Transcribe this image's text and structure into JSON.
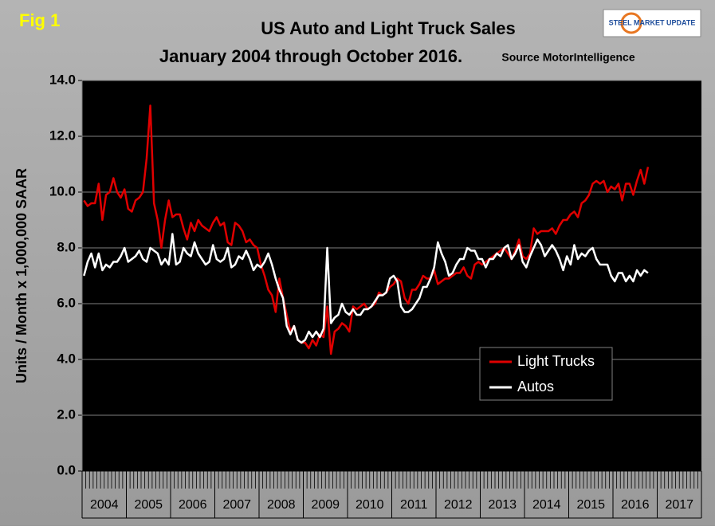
{
  "fig_label": "Fig 1",
  "logo": "STEEL MARKET UPDATE",
  "chart_data": {
    "type": "line",
    "title": "US Auto and Light Truck Sales",
    "subtitle": "January 2004 through October 2016.",
    "source": "Source MotorIntelligence",
    "y_label": "Units / Month x 1,000,000 SAAR",
    "ylim": [
      0,
      14
    ],
    "yticks": [
      {
        "value": 0,
        "label": "0.0"
      },
      {
        "value": 2,
        "label": "2.0"
      },
      {
        "value": 4,
        "label": "4.0"
      },
      {
        "value": 6,
        "label": "6.0"
      },
      {
        "value": 8,
        "label": "8.0"
      },
      {
        "value": 10,
        "label": "10.0"
      },
      {
        "value": 12,
        "label": "12.0"
      },
      {
        "value": 14,
        "label": "14.0"
      }
    ],
    "grid": true,
    "legend": "lower-right",
    "categories": [
      "2004",
      null,
      null,
      null,
      null,
      null,
      null,
      null,
      null,
      null,
      null,
      null,
      "2005",
      null,
      null,
      null,
      null,
      null,
      null,
      null,
      null,
      null,
      null,
      null,
      "2006",
      null,
      null,
      null,
      null,
      null,
      null,
      null,
      null,
      null,
      null,
      null,
      "2007",
      null,
      null,
      null,
      null,
      null,
      null,
      null,
      null,
      null,
      null,
      null,
      "2008",
      null,
      null,
      null,
      null,
      null,
      null,
      null,
      null,
      null,
      null,
      null,
      "2009",
      null,
      null,
      null,
      null,
      null,
      null,
      null,
      null,
      null,
      null,
      null,
      "2010",
      null,
      null,
      null,
      null,
      null,
      null,
      null,
      null,
      null,
      null,
      null,
      "2011",
      null,
      null,
      null,
      null,
      null,
      null,
      null,
      null,
      null,
      null,
      null,
      "2012",
      null,
      null,
      null,
      null,
      null,
      null,
      null,
      null,
      null,
      null,
      null,
      "2013",
      null,
      null,
      null,
      null,
      null,
      null,
      null,
      null,
      null,
      null,
      null,
      "2014",
      null,
      null,
      null,
      null,
      null,
      null,
      null,
      null,
      null,
      null,
      null,
      "2015",
      null,
      null,
      null,
      null,
      null,
      null,
      null,
      null,
      null,
      null,
      null,
      "2016",
      null,
      null,
      null,
      null,
      null,
      null,
      null,
      null,
      null,
      null,
      null,
      "2017",
      null,
      null,
      null,
      null,
      null,
      null,
      null,
      null,
      null,
      null,
      null
    ],
    "series": [
      {
        "name": "Light Trucks",
        "color": "#e00000",
        "values": [
          9.7,
          9.5,
          9.6,
          9.6,
          10.3,
          9.0,
          9.9,
          10.0,
          10.5,
          10.0,
          9.8,
          10.1,
          9.4,
          9.3,
          9.7,
          9.8,
          10.0,
          11.2,
          13.1,
          9.6,
          9.0,
          8.0,
          9.0,
          9.7,
          9.1,
          9.2,
          9.2,
          8.7,
          8.3,
          8.9,
          8.6,
          9.0,
          8.8,
          8.7,
          8.6,
          8.9,
          9.1,
          8.8,
          8.9,
          8.2,
          8.1,
          8.9,
          8.8,
          8.6,
          8.2,
          8.3,
          8.1,
          8.0,
          7.4,
          7.0,
          6.5,
          6.3,
          5.7,
          6.9,
          6.2,
          5.6,
          5.0,
          5.2,
          4.7,
          4.6,
          4.6,
          4.4,
          4.7,
          4.5,
          4.9,
          4.8,
          5.9,
          4.2,
          5.0,
          5.1,
          5.3,
          5.2,
          5.0,
          5.9,
          5.8,
          5.9,
          6.0,
          5.8,
          5.9,
          6.0,
          6.4,
          6.3,
          6.4,
          6.6,
          6.7,
          6.9,
          6.8,
          6.2,
          6.0,
          6.5,
          6.5,
          6.7,
          7.0,
          6.9,
          6.9,
          7.2,
          6.7,
          6.8,
          6.9,
          6.9,
          7.0,
          7.1,
          7.1,
          7.3,
          7.0,
          6.9,
          7.4,
          7.5,
          7.4,
          7.5,
          7.6,
          7.7,
          7.8,
          7.9,
          8.0,
          7.8,
          7.6,
          7.9,
          8.3,
          7.7,
          7.6,
          7.8,
          8.7,
          8.5,
          8.6,
          8.6,
          8.6,
          8.7,
          8.5,
          8.8,
          9.0,
          9.0,
          9.2,
          9.3,
          9.1,
          9.6,
          9.7,
          9.9,
          10.3,
          10.4,
          10.3,
          10.4,
          10.0,
          10.2,
          10.1,
          10.3,
          9.7,
          10.3,
          10.3,
          9.9,
          10.4,
          10.8,
          10.3,
          10.9,
          null,
          null,
          null,
          null,
          null,
          null,
          null,
          null,
          null,
          null,
          null,
          null,
          null,
          null
        ]
      },
      {
        "name": "Autos",
        "color": "#ffffff",
        "values": [
          7.0,
          7.5,
          7.8,
          7.3,
          7.8,
          7.2,
          7.4,
          7.3,
          7.5,
          7.5,
          7.7,
          8.0,
          7.5,
          7.6,
          7.7,
          7.9,
          7.6,
          7.5,
          8.0,
          7.9,
          7.8,
          7.4,
          7.6,
          7.4,
          8.5,
          7.4,
          7.5,
          8.0,
          7.8,
          7.7,
          8.2,
          7.8,
          7.6,
          7.4,
          7.5,
          8.1,
          7.6,
          7.5,
          7.6,
          8.0,
          7.3,
          7.4,
          7.7,
          7.6,
          7.9,
          7.6,
          7.2,
          7.4,
          7.3,
          7.5,
          7.8,
          7.4,
          6.9,
          6.5,
          6.2,
          5.2,
          4.9,
          5.2,
          4.7,
          4.6,
          4.7,
          5.0,
          4.8,
          5.0,
          4.8,
          5.1,
          8.0,
          5.3,
          5.5,
          5.6,
          6.0,
          5.7,
          5.6,
          5.8,
          5.6,
          5.6,
          5.8,
          5.8,
          5.9,
          6.1,
          6.3,
          6.3,
          6.4,
          6.9,
          7.0,
          6.8,
          5.9,
          5.7,
          5.7,
          5.8,
          6.0,
          6.2,
          6.6,
          6.6,
          6.9,
          7.3,
          8.2,
          7.8,
          7.5,
          7.0,
          7.1,
          7.4,
          7.6,
          7.6,
          8.0,
          7.9,
          7.9,
          7.6,
          7.6,
          7.3,
          7.6,
          7.6,
          7.8,
          7.7,
          8.0,
          8.1,
          7.6,
          7.8,
          8.1,
          7.5,
          7.3,
          7.7,
          8.0,
          8.3,
          8.1,
          7.7,
          7.9,
          8.1,
          7.9,
          7.6,
          7.2,
          7.7,
          7.4,
          8.1,
          7.6,
          7.8,
          7.7,
          7.9,
          8.0,
          7.6,
          7.4,
          7.4,
          7.4,
          7.0,
          6.8,
          7.1,
          7.1,
          6.8,
          7.0,
          6.8,
          7.2,
          7.0,
          7.2,
          7.1,
          null,
          null,
          null,
          null,
          null,
          null,
          null,
          null,
          null,
          null,
          null,
          null,
          null,
          null
        ]
      }
    ]
  }
}
